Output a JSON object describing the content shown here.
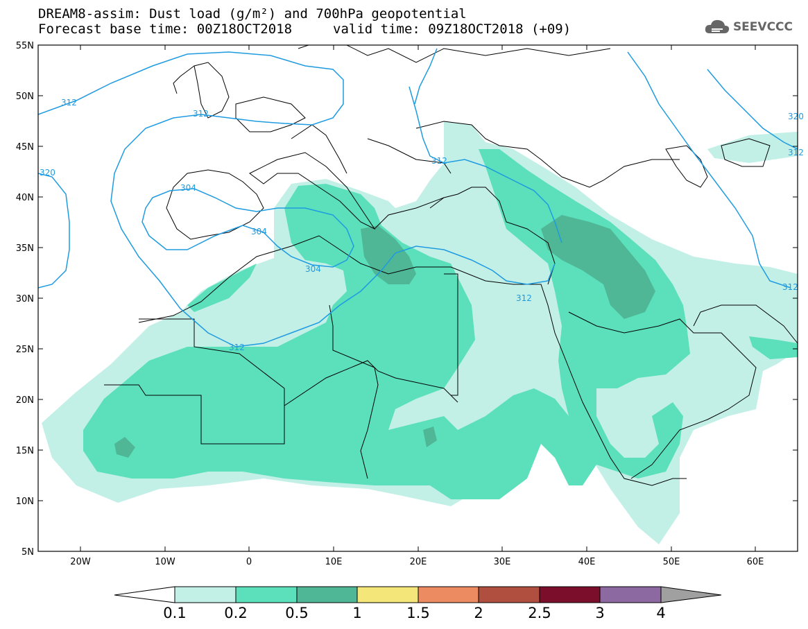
{
  "title": {
    "line1": "DREAM8-assim: Dust load (g/m²) and 700hPa geopotential",
    "line2_base": "Forecast base time: 00Z18OCT2018",
    "line2_valid": "valid time: 09Z18OCT2018 (+09)"
  },
  "logo": {
    "text": "SEEVCCC",
    "icon": "cloud-icon"
  },
  "map": {
    "lon_range": [
      -25,
      65
    ],
    "lat_range": [
      5,
      55
    ],
    "lat_labels": [
      "55N",
      "50N",
      "45N",
      "40N",
      "35N",
      "30N",
      "25N",
      "20N",
      "15N",
      "10N",
      "5N"
    ],
    "lon_labels": [
      "20W",
      "10W",
      "0",
      "10E",
      "20E",
      "30E",
      "40E",
      "50E",
      "60E"
    ],
    "contour_labels": [
      "312",
      "312",
      "312",
      "312",
      "312",
      "312",
      "304",
      "304",
      "304",
      "320",
      "320",
      "312"
    ],
    "contour_color": "#1e9be0"
  },
  "colorbar": {
    "labels": [
      "0.1",
      "0.2",
      "0.5",
      "1",
      "1.5",
      "2",
      "2.5",
      "3",
      "4"
    ],
    "colors": [
      "#ffffff",
      "#c2f0e7",
      "#5be0bb",
      "#4fb795",
      "#f5e67a",
      "#ec8a62",
      "#b04e3f",
      "#7b0e2a",
      "#8c69a0",
      "#a0a0a0"
    ]
  }
}
